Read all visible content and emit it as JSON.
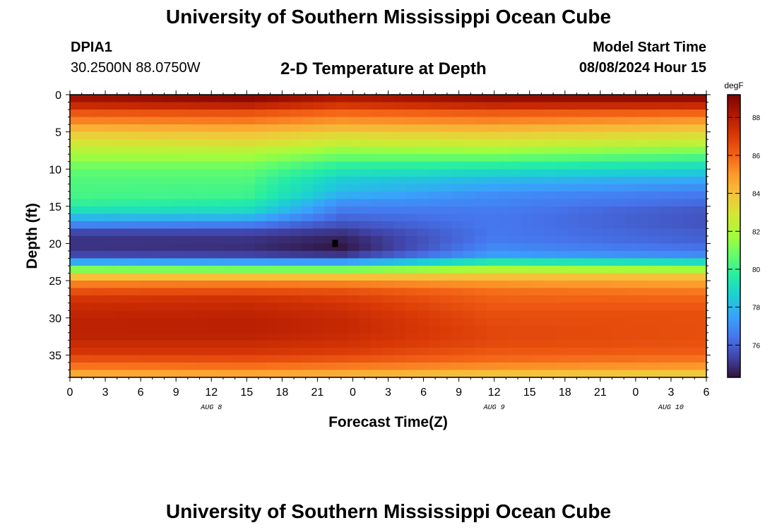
{
  "header": {
    "title": "University of Southern Mississippi Ocean Cube",
    "station_id": "DPIA1",
    "coords": "30.2500N  88.0750W",
    "model_label": "Model Start Time",
    "model_time": "08/08/2024 Hour 15"
  },
  "footer": {
    "title": "University of Southern Mississippi Ocean Cube"
  },
  "chart_data": {
    "type": "heatmap",
    "title": "2-D Temperature at Depth",
    "xlabel": "Forecast Time(Z)",
    "ylabel": "Depth (ft)",
    "x_range_hours": [
      0,
      54
    ],
    "x_tick_labels": [
      "0",
      "3",
      "6",
      "9",
      "12",
      "15",
      "18",
      "21",
      "0",
      "3",
      "6",
      "9",
      "12",
      "15",
      "18",
      "21",
      "0",
      "3",
      "6"
    ],
    "date_labels": [
      {
        "text": "AUG 8",
        "hour": 12
      },
      {
        "text": "AUG 9",
        "hour": 36
      },
      {
        "text": "AUG 10",
        "hour": 51
      }
    ],
    "y_range_ft": [
      0,
      38
    ],
    "y_ticks": [
      0,
      5,
      10,
      15,
      20,
      25,
      30,
      35
    ],
    "y_tick_labels": [
      "0",
      "5",
      "10",
      "15",
      "20",
      "25",
      "30",
      "35"
    ],
    "colorbar": {
      "unit": "degF",
      "range": [
        74.3,
        89.2
      ],
      "ticks": [
        76,
        78,
        80,
        82,
        84,
        86,
        88
      ],
      "tick_labels": [
        "76",
        "78",
        "80",
        "82",
        "84",
        "86",
        "88"
      ],
      "colormap": [
        "#30123b",
        "#4145ab",
        "#4675ed",
        "#39a2fc",
        "#1bcfd4",
        "#24eca6",
        "#61fc6c",
        "#a4fc3b",
        "#d1e834",
        "#f3c63a",
        "#fe9b2d",
        "#f36315",
        "#d93806",
        "#b11901",
        "#7a0402"
      ]
    },
    "marker": {
      "hour": 22.5,
      "depth_ft": 20
    },
    "n_time_steps": 55,
    "n_depth_levels": 38,
    "temperature_profiles_degF": {
      "depth_ft": [
        0,
        1,
        2,
        3,
        4,
        5,
        6,
        7,
        8,
        9,
        10,
        11,
        12,
        13,
        14,
        15,
        16,
        17,
        18,
        19,
        20,
        21,
        22,
        23,
        24,
        25,
        26,
        27,
        28,
        29,
        30,
        31,
        32,
        33,
        34,
        35,
        36,
        37
      ],
      "hour_0": [
        88.4,
        87.5,
        86.3,
        85.4,
        84.4,
        83.5,
        82.9,
        82.2,
        81.6,
        81.0,
        80.6,
        80.4,
        80.3,
        80.2,
        79.9,
        79.2,
        78.0,
        76.8,
        75.4,
        75.0,
        75.0,
        75.4,
        77.7,
        81.2,
        84.0,
        85.5,
        86.5,
        87.2,
        87.5,
        87.7,
        87.8,
        87.8,
        87.8,
        87.5,
        87.2,
        86.5,
        85.7,
        84.6
      ],
      "hour_15": [
        88.9,
        87.8,
        86.4,
        85.6,
        84.6,
        83.8,
        83.2,
        82.3,
        81.7,
        81.0,
        80.6,
        80.4,
        80.2,
        80.1,
        79.6,
        79.0,
        77.9,
        76.6,
        75.4,
        75.0,
        74.9,
        75.3,
        77.5,
        81.0,
        84.0,
        85.6,
        86.6,
        87.3,
        87.6,
        87.8,
        87.9,
        87.9,
        87.8,
        87.5,
        87.2,
        86.6,
        85.8,
        84.7
      ],
      "hour_23": [
        88.1,
        87.1,
        85.9,
        85.1,
        84.2,
        83.2,
        82.6,
        81.5,
        80.7,
        79.8,
        79.2,
        78.5,
        78.2,
        77.8,
        77.1,
        76.6,
        76.1,
        75.6,
        75.0,
        74.6,
        74.4,
        75.0,
        77.4,
        81.0,
        84.0,
        85.5,
        86.5,
        87.0,
        87.3,
        87.5,
        87.6,
        87.6,
        87.5,
        87.3,
        87.0,
        86.4,
        85.6,
        84.5
      ],
      "hour_36": [
        88.7,
        87.6,
        86.2,
        85.4,
        84.4,
        83.5,
        82.8,
        81.7,
        80.7,
        79.7,
        78.8,
        78.0,
        77.5,
        77.0,
        76.8,
        76.6,
        76.5,
        76.5,
        76.5,
        76.6,
        76.9,
        77.4,
        79.5,
        82.0,
        84.0,
        85.1,
        85.8,
        86.1,
        86.3,
        86.5,
        86.6,
        86.7,
        86.7,
        86.6,
        86.3,
        85.9,
        85.2,
        84.0
      ],
      "hour_54": [
        88.7,
        87.5,
        86.0,
        85.0,
        84.0,
        83.1,
        82.4,
        81.2,
        80.2,
        79.2,
        78.4,
        77.6,
        77.0,
        76.5,
        76.2,
        75.8,
        75.7,
        75.7,
        75.9,
        76.0,
        76.3,
        76.9,
        79.0,
        81.7,
        84.0,
        84.9,
        85.6,
        86.0,
        86.3,
        86.5,
        86.5,
        86.5,
        86.5,
        86.4,
        86.2,
        85.7,
        85.0,
        83.8
      ]
    }
  }
}
